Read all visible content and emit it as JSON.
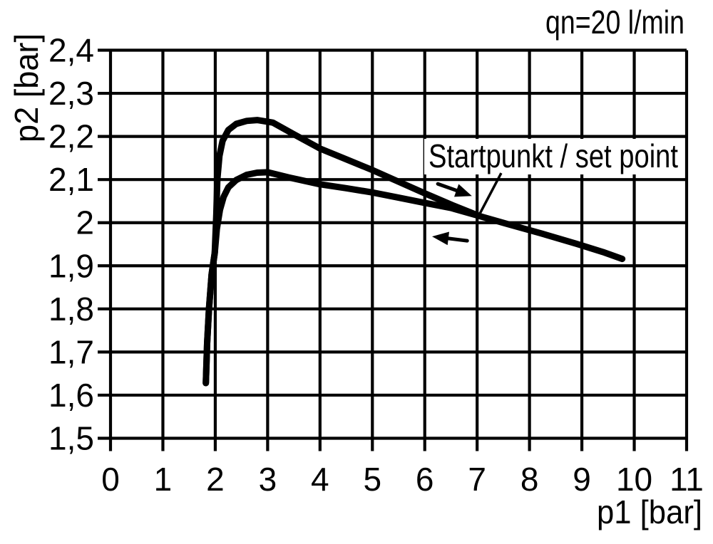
{
  "chart_data": {
    "type": "line",
    "title": "qn=20 l/min",
    "xlabel": "p1 [bar]",
    "ylabel": "p2 [bar]",
    "xlim": [
      0,
      11
    ],
    "ylim": [
      1.5,
      2.4
    ],
    "grid": true,
    "line_color": "#000000",
    "background_color": "#ffffff",
    "x_ticks": {
      "values": [
        0,
        1,
        2,
        3,
        4,
        5,
        6,
        7,
        8,
        9,
        10,
        11
      ],
      "labels": [
        "0",
        "1",
        "2",
        "3",
        "4",
        "5",
        "6",
        "7",
        "8",
        "9",
        "10",
        "11"
      ]
    },
    "y_ticks": {
      "values": [
        2.4,
        2.3,
        2.2,
        2.1,
        2.0,
        1.9,
        1.8,
        1.7,
        1.6,
        1.5
      ],
      "labels": [
        "2,4",
        "2,3",
        "2,2",
        "2,1",
        "2",
        "1,9",
        "1,8",
        "1,7",
        "1,6",
        "1,5"
      ]
    },
    "set_point": {
      "p1": 7.0,
      "p2": 2.0
    },
    "annotation": {
      "text": "Startpunkt / set point",
      "points_to": [
        7.03,
        2.016
      ],
      "leader_from": [
        7.46,
        2.115
      ]
    },
    "series": [
      {
        "name": "forward stroke (p1 increasing)",
        "direction": "right",
        "points": [
          [
            1.82,
            1.628
          ],
          [
            1.845,
            1.72
          ],
          [
            1.88,
            1.8
          ],
          [
            1.93,
            1.88
          ],
          [
            1.99,
            1.93
          ],
          [
            2.02,
            2.02
          ],
          [
            2.04,
            2.1
          ],
          [
            2.08,
            2.155
          ],
          [
            2.14,
            2.19
          ],
          [
            2.25,
            2.215
          ],
          [
            2.4,
            2.229
          ],
          [
            2.6,
            2.236
          ],
          [
            2.8,
            2.238
          ],
          [
            3.1,
            2.232
          ],
          [
            3.5,
            2.205
          ],
          [
            4.0,
            2.172
          ],
          [
            4.5,
            2.147
          ],
          [
            5.0,
            2.122
          ],
          [
            5.5,
            2.095
          ],
          [
            6.0,
            2.068
          ],
          [
            6.5,
            2.042
          ],
          [
            7.05,
            2.015
          ],
          [
            7.6,
            1.996
          ],
          [
            8.2,
            1.976
          ],
          [
            8.9,
            1.951
          ],
          [
            9.4,
            1.932
          ],
          [
            9.77,
            1.916
          ]
        ]
      },
      {
        "name": "return stroke (p1 decreasing)",
        "direction": "left",
        "points": [
          [
            1.82,
            1.628
          ],
          [
            1.845,
            1.72
          ],
          [
            1.88,
            1.8
          ],
          [
            1.93,
            1.88
          ],
          [
            1.99,
            1.93
          ],
          [
            2.03,
            1.985
          ],
          [
            2.09,
            2.03
          ],
          [
            2.16,
            2.06
          ],
          [
            2.25,
            2.082
          ],
          [
            2.4,
            2.099
          ],
          [
            2.6,
            2.111
          ],
          [
            2.8,
            2.116
          ],
          [
            3.0,
            2.117
          ],
          [
            3.4,
            2.105
          ],
          [
            4.0,
            2.089
          ],
          [
            4.5,
            2.08
          ],
          [
            5.0,
            2.07
          ],
          [
            5.5,
            2.058
          ],
          [
            6.0,
            2.046
          ],
          [
            6.5,
            2.034
          ],
          [
            7.05,
            2.015
          ]
        ]
      }
    ],
    "arrows": [
      {
        "name": "forward-direction-arrow",
        "from": [
          6.25,
          2.09
        ],
        "to": [
          6.9,
          2.062
        ]
      },
      {
        "name": "return-direction-arrow",
        "from": [
          6.81,
          1.958
        ],
        "to": [
          6.14,
          1.968
        ]
      }
    ]
  }
}
